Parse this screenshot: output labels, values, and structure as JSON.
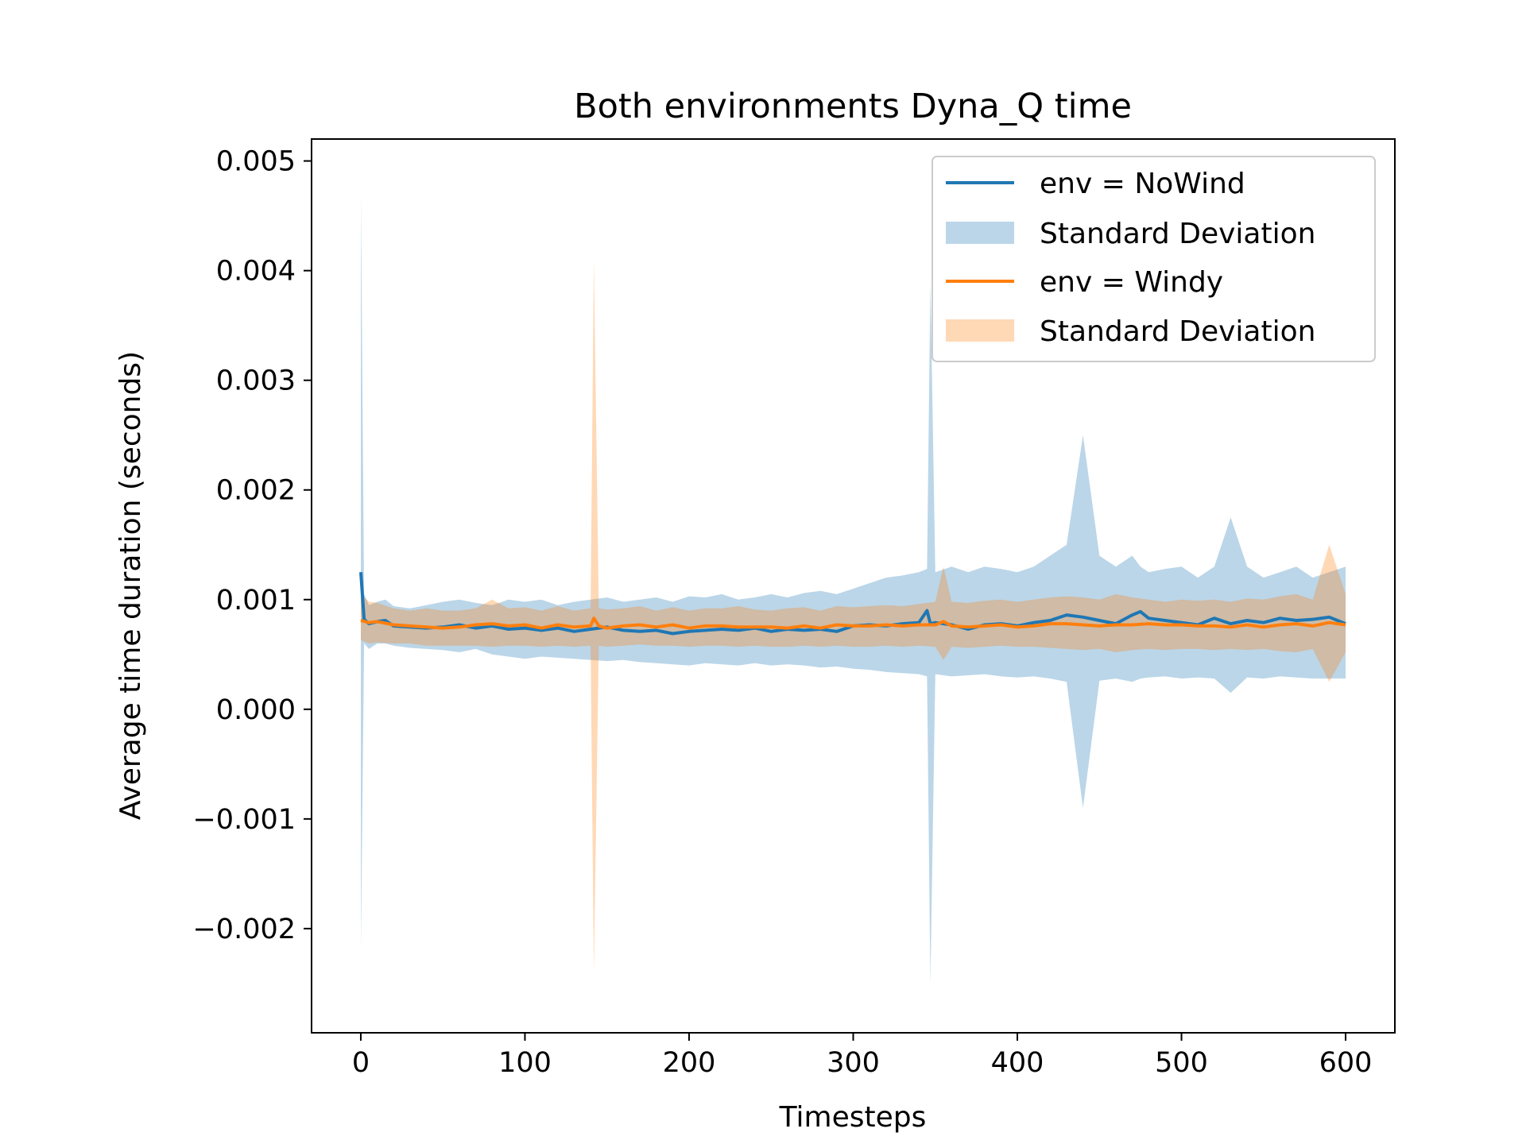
{
  "chart_data": {
    "type": "line",
    "title": "Both environments Dyna_Q time",
    "xlabel": "Timesteps",
    "ylabel": "Average time duration (seconds)",
    "xlim": [
      -30,
      630
    ],
    "ylim": [
      -0.00295,
      0.0052
    ],
    "xticks": [
      0,
      100,
      200,
      300,
      400,
      500,
      600
    ],
    "xtick_labels": [
      "0",
      "100",
      "200",
      "300",
      "400",
      "500",
      "600"
    ],
    "yticks": [
      -0.002,
      -0.001,
      0.0,
      0.001,
      0.002,
      0.003,
      0.004,
      0.005
    ],
    "ytick_labels": [
      "−0.002",
      "−0.001",
      "0.000",
      "0.001",
      "0.002",
      "0.003",
      "0.004",
      "0.005"
    ],
    "grid": false,
    "legend_position": "top-right",
    "legend": [
      "env = NoWind",
      "Standard Deviation",
      "env = Windy",
      "Standard Deviation"
    ],
    "series": [
      {
        "name": "env = NoWind",
        "color": "#1f77b4",
        "band_color": "#1f77b4",
        "x": [
          0,
          2,
          5,
          10,
          15,
          20,
          30,
          40,
          50,
          60,
          70,
          80,
          90,
          100,
          110,
          120,
          130,
          140,
          150,
          160,
          170,
          180,
          190,
          200,
          210,
          220,
          230,
          240,
          250,
          260,
          270,
          280,
          290,
          300,
          310,
          320,
          330,
          340,
          345,
          347,
          350,
          360,
          370,
          380,
          390,
          400,
          410,
          420,
          430,
          440,
          450,
          460,
          470,
          475,
          480,
          490,
          500,
          510,
          520,
          530,
          540,
          550,
          560,
          570,
          580,
          590,
          600
        ],
        "y": [
          0.00125,
          0.00082,
          0.00078,
          0.0008,
          0.00081,
          0.00076,
          0.00075,
          0.00074,
          0.00075,
          0.00077,
          0.00074,
          0.00076,
          0.00073,
          0.00074,
          0.00072,
          0.00074,
          0.00071,
          0.00073,
          0.00075,
          0.00072,
          0.00071,
          0.00072,
          0.00069,
          0.00071,
          0.00072,
          0.00073,
          0.00072,
          0.00074,
          0.00071,
          0.00073,
          0.00072,
          0.00073,
          0.00071,
          0.00076,
          0.00077,
          0.00076,
          0.00078,
          0.00079,
          0.0009,
          0.00078,
          0.00079,
          0.00077,
          0.00073,
          0.00077,
          0.00078,
          0.00076,
          0.00079,
          0.00081,
          0.00086,
          0.00084,
          0.00081,
          0.00078,
          0.00086,
          0.00089,
          0.00083,
          0.00081,
          0.00079,
          0.00077,
          0.00083,
          0.00078,
          0.00081,
          0.00079,
          0.00083,
          0.00081,
          0.00082,
          0.00084,
          0.00078
        ],
        "upper": [
          0.0047,
          0.00105,
          0.00095,
          0.00098,
          0.001,
          0.00094,
          0.00092,
          0.00095,
          0.00098,
          0.001,
          0.00097,
          0.00095,
          0.001,
          0.00098,
          0.001,
          0.00095,
          0.00098,
          0.001,
          0.00102,
          0.00098,
          0.001,
          0.00102,
          0.00098,
          0.00103,
          0.00102,
          0.00105,
          0.001,
          0.00102,
          0.00105,
          0.00102,
          0.00106,
          0.00108,
          0.00105,
          0.0011,
          0.00115,
          0.0012,
          0.00122,
          0.00125,
          0.00128,
          0.0039,
          0.00125,
          0.0013,
          0.00125,
          0.0013,
          0.00128,
          0.00125,
          0.0013,
          0.0014,
          0.0015,
          0.0025,
          0.0014,
          0.0013,
          0.0014,
          0.0013,
          0.00125,
          0.00128,
          0.0013,
          0.0012,
          0.0013,
          0.00175,
          0.0013,
          0.0012,
          0.00125,
          0.0013,
          0.0012,
          0.00125,
          0.0013
        ],
        "lower": [
          -0.0022,
          0.0006,
          0.00055,
          0.0006,
          0.0006,
          0.00058,
          0.00056,
          0.00055,
          0.00054,
          0.00052,
          0.00055,
          0.0005,
          0.00048,
          0.00046,
          0.00048,
          0.00047,
          0.00046,
          0.00045,
          0.00044,
          0.00045,
          0.00043,
          0.00042,
          0.00041,
          0.0004,
          0.00042,
          0.00041,
          0.0004,
          0.00042,
          0.0004,
          0.00041,
          0.0004,
          0.00038,
          0.00039,
          0.00037,
          0.00036,
          0.00034,
          0.00033,
          0.00032,
          0.0003,
          -0.0025,
          0.00032,
          0.0003,
          0.00031,
          0.00032,
          0.0003,
          0.00029,
          0.0003,
          0.00028,
          0.00025,
          -0.0009,
          0.00026,
          0.00028,
          0.00025,
          0.00028,
          0.00029,
          0.0003,
          0.00028,
          0.00029,
          0.00028,
          0.00015,
          0.00029,
          0.00028,
          0.0003,
          0.00029,
          0.00028,
          0.00028,
          0.00028
        ]
      },
      {
        "name": "env = Windy",
        "color": "#ff7f0e",
        "band_color": "#ff7f0e",
        "x": [
          0,
          5,
          10,
          20,
          30,
          40,
          50,
          60,
          70,
          80,
          90,
          100,
          110,
          120,
          130,
          140,
          142,
          145,
          150,
          160,
          170,
          180,
          190,
          200,
          210,
          220,
          230,
          240,
          250,
          260,
          270,
          280,
          290,
          300,
          310,
          320,
          330,
          340,
          350,
          355,
          360,
          370,
          380,
          390,
          400,
          410,
          420,
          430,
          440,
          450,
          460,
          470,
          480,
          490,
          500,
          510,
          520,
          530,
          540,
          550,
          560,
          570,
          580,
          590,
          600
        ],
        "y": [
          0.00081,
          0.00079,
          0.0008,
          0.00077,
          0.00076,
          0.00075,
          0.00074,
          0.00075,
          0.00077,
          0.00078,
          0.00076,
          0.00077,
          0.00074,
          0.00077,
          0.00075,
          0.00076,
          0.00083,
          0.00076,
          0.00074,
          0.00076,
          0.00077,
          0.00075,
          0.00077,
          0.00074,
          0.00076,
          0.00076,
          0.00075,
          0.00075,
          0.00075,
          0.00074,
          0.00076,
          0.00074,
          0.00077,
          0.00076,
          0.00076,
          0.00077,
          0.00076,
          0.00077,
          0.00077,
          0.0008,
          0.00076,
          0.00075,
          0.00076,
          0.00077,
          0.00075,
          0.00076,
          0.00078,
          0.00078,
          0.00077,
          0.00076,
          0.00077,
          0.00077,
          0.00078,
          0.00077,
          0.00077,
          0.00076,
          0.00076,
          0.00075,
          0.00077,
          0.00075,
          0.00077,
          0.00078,
          0.00076,
          0.00079,
          0.00077
        ],
        "upper": [
          0.00105,
          0.00098,
          0.00097,
          0.00092,
          0.0009,
          0.00092,
          0.0009,
          0.0009,
          0.00092,
          0.001,
          0.00092,
          0.00093,
          0.0009,
          0.00094,
          0.0009,
          0.00092,
          0.0041,
          0.00092,
          0.00091,
          0.00092,
          0.00094,
          0.0009,
          0.00093,
          0.0009,
          0.00092,
          0.00092,
          0.00094,
          0.00091,
          0.0009,
          0.00092,
          0.00093,
          0.0009,
          0.00094,
          0.00093,
          0.00094,
          0.00095,
          0.00094,
          0.00096,
          0.00098,
          0.0013,
          0.00098,
          0.00097,
          0.00099,
          0.001,
          0.00098,
          0.001,
          0.00102,
          0.00103,
          0.00102,
          0.001,
          0.00105,
          0.00102,
          0.001,
          0.00098,
          0.001,
          0.00099,
          0.001,
          0.00098,
          0.00101,
          0.001,
          0.00103,
          0.00105,
          0.001,
          0.0015,
          0.00105
        ],
        "lower": [
          0.00063,
          0.0006,
          0.00061,
          0.0006,
          0.0006,
          0.00058,
          0.00058,
          0.00058,
          0.00058,
          0.00057,
          0.00058,
          0.00058,
          0.00057,
          0.00058,
          0.00057,
          0.00058,
          -0.0024,
          0.00058,
          0.00057,
          0.00058,
          0.00059,
          0.00058,
          0.00058,
          0.00057,
          0.00058,
          0.00058,
          0.00057,
          0.00058,
          0.00057,
          0.00057,
          0.00058,
          0.00057,
          0.00058,
          0.00057,
          0.00057,
          0.00058,
          0.00057,
          0.00058,
          0.00057,
          0.00045,
          0.00057,
          0.00056,
          0.00057,
          0.00058,
          0.00057,
          0.00057,
          0.00056,
          0.00055,
          0.00054,
          0.00055,
          0.00052,
          0.00054,
          0.00055,
          0.00054,
          0.00055,
          0.00055,
          0.00054,
          0.00055,
          0.00054,
          0.00055,
          0.00053,
          0.00052,
          0.00055,
          0.00025,
          0.00052
        ]
      }
    ]
  }
}
